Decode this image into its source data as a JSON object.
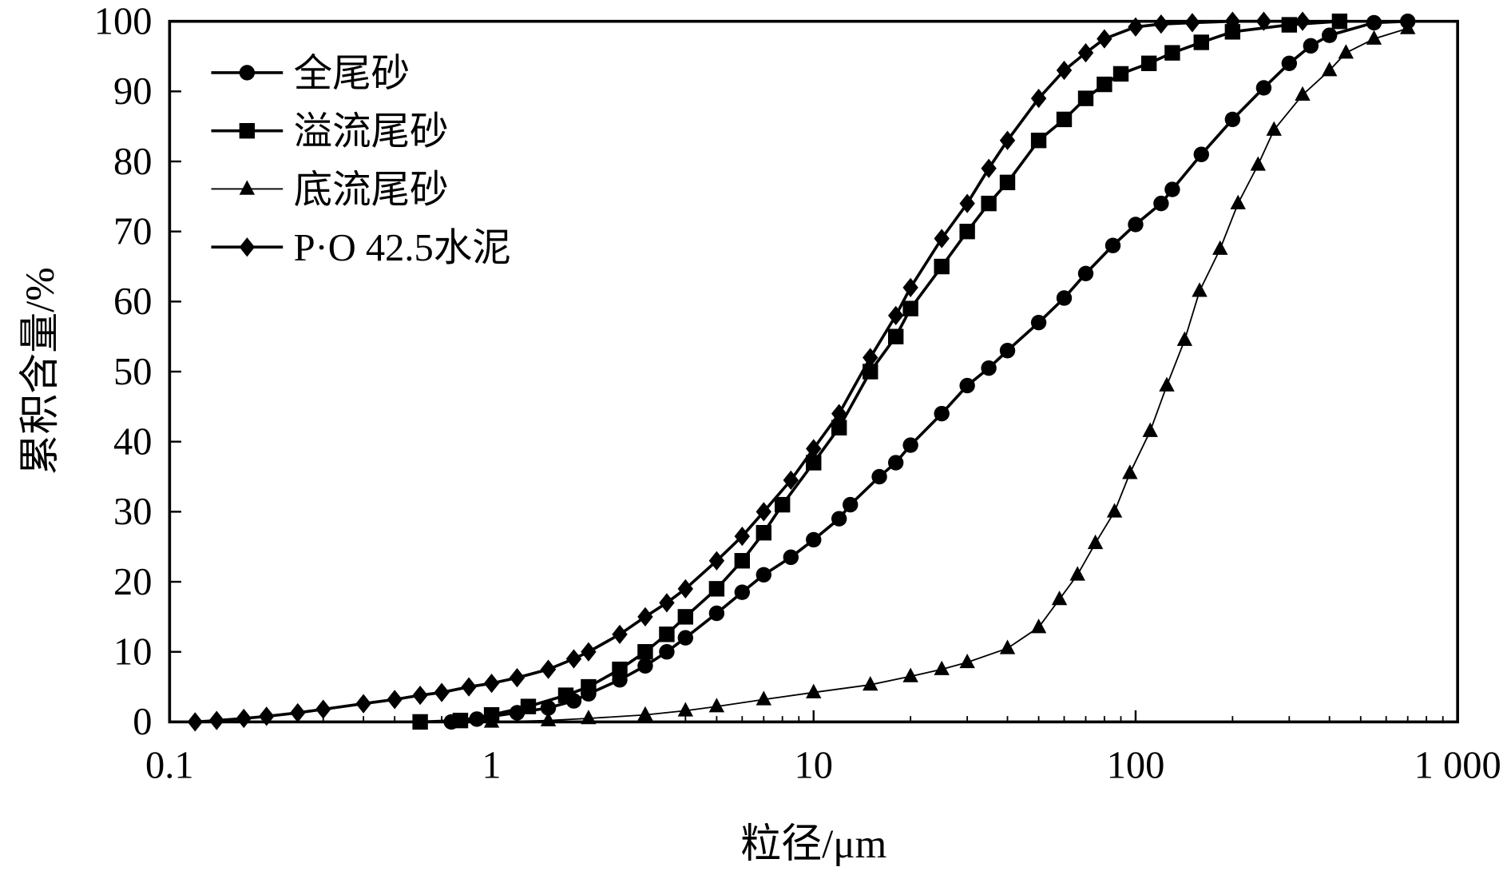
{
  "chart_data": {
    "type": "line",
    "title": "",
    "xlabel": "粒径/μm",
    "ylabel": "累积含量/%",
    "xscale": "log",
    "xlim": [
      0.1,
      1000
    ],
    "ylim": [
      0,
      100
    ],
    "xticks": [
      0.1,
      1,
      10,
      100,
      1000
    ],
    "xtick_labels": [
      "0.1",
      "1",
      "10",
      "100",
      "1 000"
    ],
    "yticks": [
      0,
      10,
      20,
      30,
      40,
      50,
      60,
      70,
      80,
      90,
      100
    ],
    "ytick_labels": [
      "0",
      "10",
      "20",
      "30",
      "40",
      "50",
      "60",
      "70",
      "80",
      "90",
      "100"
    ],
    "grid": false,
    "legend_position": "top-left",
    "series": [
      {
        "name": "全尾砂",
        "marker": "circle",
        "x": [
          0.75,
          0.9,
          1,
          1.2,
          1.5,
          1.8,
          2,
          2.5,
          3,
          3.5,
          4,
          5,
          6,
          7,
          8.5,
          10,
          12,
          13,
          16,
          18,
          20,
          25,
          30,
          35,
          40,
          50,
          60,
          70,
          85,
          100,
          120,
          130,
          160,
          200,
          250,
          300,
          350,
          400,
          550,
          700
        ],
        "y": [
          0,
          0.4,
          0.8,
          1.3,
          2,
          3,
          4,
          6,
          8,
          10,
          12,
          15.5,
          18.5,
          21,
          23.5,
          26,
          29,
          31,
          35,
          37,
          39.5,
          44,
          48,
          50.5,
          53,
          57,
          60.5,
          64,
          68,
          71,
          74,
          76,
          81,
          86,
          90.5,
          94,
          96.5,
          98,
          99.8,
          100
        ]
      },
      {
        "name": "溢流尾砂",
        "marker": "square",
        "x": [
          0.6,
          0.8,
          1,
          1.3,
          1.7,
          2,
          2.5,
          3,
          3.5,
          4,
          5,
          6,
          7,
          8,
          10,
          12,
          15,
          18,
          20,
          25,
          30,
          35,
          40,
          50,
          60,
          70,
          80,
          90,
          110,
          130,
          160,
          200,
          300,
          430
        ],
        "y": [
          0,
          0.2,
          1,
          2.2,
          3.8,
          5,
          7.5,
          10,
          12.5,
          15,
          19,
          23,
          27,
          31,
          37,
          42,
          50,
          55,
          59,
          65,
          70,
          74,
          77,
          83,
          86,
          89,
          91,
          92.5,
          94,
          95.5,
          97,
          98.5,
          99.5,
          100
        ]
      },
      {
        "name": "底流尾砂",
        "marker": "triangle",
        "x": [
          1,
          1.5,
          2,
          3,
          4,
          5,
          7,
          10,
          15,
          20,
          25,
          30,
          40,
          50,
          58,
          66,
          75,
          86,
          96,
          111,
          125,
          142,
          158,
          183,
          208,
          240,
          269,
          330,
          400,
          450,
          550,
          700
        ],
        "y": [
          0,
          0.2,
          0.5,
          1,
          1.6,
          2.2,
          3.2,
          4.2,
          5.3,
          6.5,
          7.5,
          8.5,
          10.5,
          13.5,
          17.5,
          21,
          25.5,
          30,
          35.5,
          41.5,
          48,
          54.5,
          61.5,
          67.5,
          74,
          79.5,
          84.5,
          89.5,
          93,
          95.5,
          97.5,
          99
        ]
      },
      {
        "name": "P·O 42.5水泥",
        "marker": "diamond",
        "x": [
          0.12,
          0.14,
          0.17,
          0.2,
          0.25,
          0.3,
          0.4,
          0.5,
          0.6,
          0.7,
          0.85,
          1,
          1.2,
          1.5,
          1.8,
          2,
          2.5,
          3,
          3.5,
          4,
          5,
          6,
          7,
          8.5,
          10,
          12,
          15,
          18,
          20,
          25,
          30,
          35,
          40,
          50,
          60,
          70,
          80,
          100,
          120,
          150,
          200,
          250,
          330
        ],
        "y": [
          0,
          0.2,
          0.5,
          0.8,
          1.3,
          1.8,
          2.6,
          3.2,
          3.8,
          4.2,
          5,
          5.5,
          6.3,
          7.5,
          9,
          10,
          12.5,
          15,
          17,
          19,
          23,
          26.5,
          30,
          34.5,
          39,
          44,
          52,
          58,
          62,
          69,
          74,
          79,
          83,
          89,
          93,
          95.5,
          97.5,
          99.2,
          99.6,
          99.8,
          100,
          100,
          100
        ]
      }
    ]
  }
}
